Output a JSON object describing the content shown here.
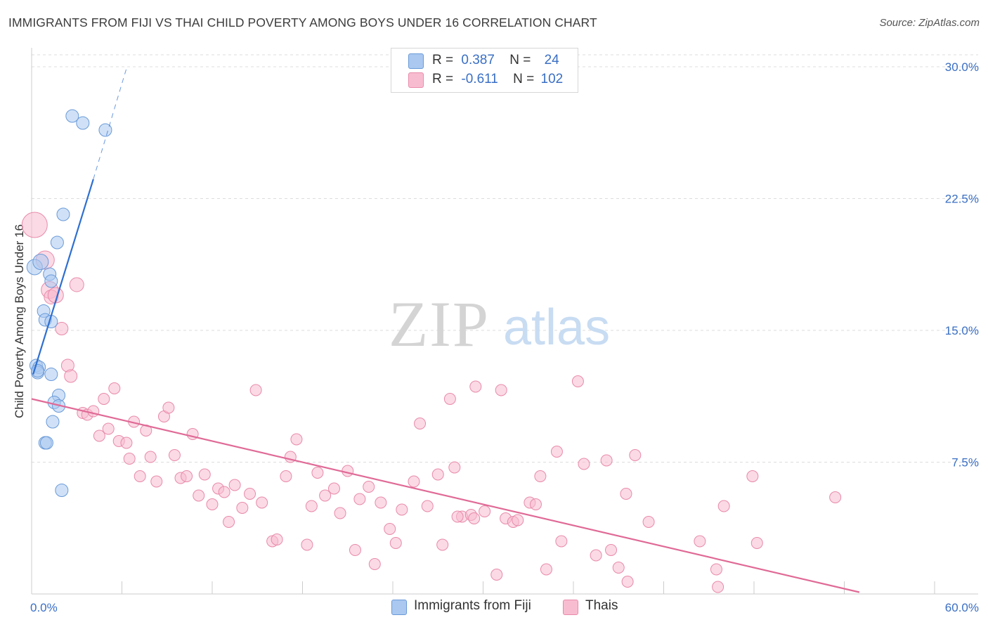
{
  "header": {
    "title": "IMMIGRANTS FROM FIJI VS THAI CHILD POVERTY AMONG BOYS UNDER 16 CORRELATION CHART",
    "source": "Source: ZipAtlas.com"
  },
  "watermark": {
    "zip": "ZIP",
    "atlas": "atlas"
  },
  "colors": {
    "fiji_fill": "#aac8f0",
    "fiji_stroke": "#6a9ad8",
    "fiji_line": "#2e6fd0",
    "thai_fill": "#f8bcd0",
    "thai_stroke": "#e88aaa",
    "thai_line": "#e06a96",
    "axis_text": "#3a6fc4",
    "grid": "#dddddd"
  },
  "legend": {
    "rows": [
      {
        "r_label": "R =",
        "r_value": "0.387",
        "n_label": "N =",
        "n_value": "24",
        "series": "fiji"
      },
      {
        "r_label": "R =",
        "r_value": "-0.611",
        "n_label": "N =",
        "n_value": "102",
        "series": "thai"
      }
    ]
  },
  "bottom_legend": {
    "fiji": "Immigrants from Fiji",
    "thai": "Thais"
  },
  "chart_data": {
    "type": "scatter",
    "title": "IMMIGRANTS FROM FIJI VS THAI CHILD POVERTY AMONG BOYS UNDER 16 CORRELATION CHART",
    "xlabel": "",
    "ylabel": "Child Poverty Among Boys Under 16",
    "xlim": [
      0,
      60
    ],
    "ylim": [
      0,
      31
    ],
    "x_tick_labels": [
      "0.0%",
      "60.0%"
    ],
    "y_ticks": [
      7.5,
      15.0,
      22.5,
      30.0
    ],
    "y_tick_labels": [
      "7.5%",
      "15.0%",
      "22.5%",
      "30.0%"
    ],
    "grid": true,
    "legend_position": "top-center",
    "series": [
      {
        "name": "Immigrants from Fiji",
        "key": "fiji",
        "points": [
          [
            0.2,
            18.6,
            11
          ],
          [
            0.6,
            18.9,
            11
          ],
          [
            1.2,
            18.2,
            9
          ],
          [
            1.3,
            17.8,
            9
          ],
          [
            2.1,
            21.6,
            9
          ],
          [
            1.7,
            20.0,
            9
          ],
          [
            2.7,
            27.2,
            9
          ],
          [
            3.4,
            26.8,
            9
          ],
          [
            4.9,
            26.4,
            9
          ],
          [
            0.8,
            16.1,
            9
          ],
          [
            0.9,
            15.6,
            9
          ],
          [
            1.3,
            15.5,
            9
          ],
          [
            0.3,
            13.0,
            9
          ],
          [
            0.5,
            12.9,
            9
          ],
          [
            0.4,
            12.6,
            9
          ],
          [
            1.3,
            12.5,
            9
          ],
          [
            1.8,
            11.3,
            9
          ],
          [
            1.5,
            10.9,
            9
          ],
          [
            1.8,
            10.7,
            9
          ],
          [
            1.4,
            9.8,
            9
          ],
          [
            0.9,
            8.6,
            9
          ],
          [
            1.0,
            8.6,
            9
          ],
          [
            2.0,
            5.9,
            9
          ],
          [
            0.4,
            12.7,
            9
          ]
        ],
        "trend": {
          "x0": 0.1,
          "y0": 12.5,
          "x1": 4.1,
          "y1": 23.6,
          "dash_x1": 6.3,
          "dash_y1": 29.9
        }
      },
      {
        "name": "Thais",
        "key": "thai",
        "points": [
          [
            0.2,
            21.0,
            18
          ],
          [
            0.9,
            19.0,
            13
          ],
          [
            1.2,
            17.3,
            12
          ],
          [
            1.3,
            16.9,
            10
          ],
          [
            1.6,
            17.0,
            11
          ],
          [
            3.0,
            17.6,
            10
          ],
          [
            2.0,
            15.1,
            9
          ],
          [
            2.4,
            13.0,
            9
          ],
          [
            2.6,
            12.4,
            9
          ],
          [
            5.5,
            11.7,
            8
          ],
          [
            4.8,
            11.1,
            8
          ],
          [
            3.4,
            10.3,
            8
          ],
          [
            3.7,
            10.2,
            8
          ],
          [
            4.1,
            10.4,
            8
          ],
          [
            4.5,
            9.0,
            8
          ],
          [
            5.1,
            9.4,
            8
          ],
          [
            5.8,
            8.7,
            8
          ],
          [
            6.3,
            8.6,
            8
          ],
          [
            6.8,
            9.8,
            8
          ],
          [
            7.6,
            9.3,
            8
          ],
          [
            6.5,
            7.7,
            8
          ],
          [
            7.2,
            6.7,
            8
          ],
          [
            7.9,
            7.8,
            8
          ],
          [
            8.3,
            6.4,
            8
          ],
          [
            8.8,
            10.1,
            8
          ],
          [
            9.1,
            10.6,
            8
          ],
          [
            9.5,
            7.9,
            8
          ],
          [
            9.9,
            6.6,
            8
          ],
          [
            10.3,
            6.7,
            8
          ],
          [
            10.7,
            9.1,
            8
          ],
          [
            11.1,
            5.6,
            8
          ],
          [
            11.5,
            6.8,
            8
          ],
          [
            12.0,
            5.1,
            8
          ],
          [
            12.4,
            6.0,
            8
          ],
          [
            12.8,
            5.8,
            8
          ],
          [
            13.1,
            4.1,
            8
          ],
          [
            13.5,
            6.2,
            8
          ],
          [
            14.0,
            4.9,
            8
          ],
          [
            14.5,
            5.7,
            8
          ],
          [
            14.9,
            11.6,
            8
          ],
          [
            15.3,
            5.2,
            8
          ],
          [
            16.0,
            3.0,
            8
          ],
          [
            16.3,
            3.1,
            8
          ],
          [
            16.9,
            6.7,
            8
          ],
          [
            17.2,
            7.8,
            8
          ],
          [
            17.6,
            8.8,
            8
          ],
          [
            18.3,
            2.8,
            8
          ],
          [
            18.6,
            5.0,
            8
          ],
          [
            19.0,
            6.9,
            8
          ],
          [
            19.5,
            5.6,
            8
          ],
          [
            20.1,
            6.0,
            8
          ],
          [
            20.5,
            4.6,
            8
          ],
          [
            21.0,
            7.0,
            8
          ],
          [
            21.5,
            2.5,
            8
          ],
          [
            21.8,
            5.4,
            8
          ],
          [
            22.4,
            6.1,
            8
          ],
          [
            22.8,
            1.7,
            8
          ],
          [
            23.2,
            5.2,
            8
          ],
          [
            23.8,
            3.7,
            8
          ],
          [
            24.2,
            2.9,
            8
          ],
          [
            24.6,
            4.8,
            8
          ],
          [
            25.4,
            6.4,
            8
          ],
          [
            25.8,
            9.7,
            8
          ],
          [
            26.3,
            5.0,
            8
          ],
          [
            27.0,
            6.8,
            8
          ],
          [
            27.3,
            2.8,
            8
          ],
          [
            27.8,
            11.1,
            8
          ],
          [
            28.1,
            7.2,
            8
          ],
          [
            28.6,
            4.4,
            8
          ],
          [
            29.2,
            4.5,
            8
          ],
          [
            28.3,
            4.4,
            8
          ],
          [
            29.4,
            4.3,
            8
          ],
          [
            29.5,
            11.8,
            8
          ],
          [
            30.1,
            4.7,
            8
          ],
          [
            30.9,
            1.1,
            8
          ],
          [
            31.5,
            4.3,
            8
          ],
          [
            31.2,
            11.6,
            8
          ],
          [
            32.0,
            4.1,
            8
          ],
          [
            32.3,
            4.2,
            8
          ],
          [
            33.1,
            5.2,
            8
          ],
          [
            33.8,
            6.7,
            8
          ],
          [
            33.5,
            5.1,
            8
          ],
          [
            34.2,
            1.4,
            8
          ],
          [
            34.9,
            8.1,
            8
          ],
          [
            35.2,
            3.0,
            8
          ],
          [
            36.3,
            12.1,
            8
          ],
          [
            36.7,
            7.4,
            8
          ],
          [
            37.5,
            2.2,
            8
          ],
          [
            38.5,
            2.5,
            8
          ],
          [
            39.0,
            1.5,
            8
          ],
          [
            39.5,
            5.7,
            8
          ],
          [
            39.6,
            0.7,
            8
          ],
          [
            40.1,
            7.9,
            8
          ],
          [
            44.4,
            3.0,
            8
          ],
          [
            45.5,
            1.4,
            8
          ],
          [
            45.6,
            0.4,
            8
          ],
          [
            46.0,
            5.0,
            8
          ],
          [
            47.9,
            6.7,
            8
          ],
          [
            48.2,
            2.9,
            8
          ],
          [
            53.4,
            5.5,
            8
          ],
          [
            38.2,
            7.6,
            8
          ],
          [
            41.0,
            4.1,
            8
          ]
        ],
        "trend": {
          "x0": 0.0,
          "y0": 11.1,
          "x1": 55.0,
          "y1": 0.1
        }
      }
    ]
  }
}
